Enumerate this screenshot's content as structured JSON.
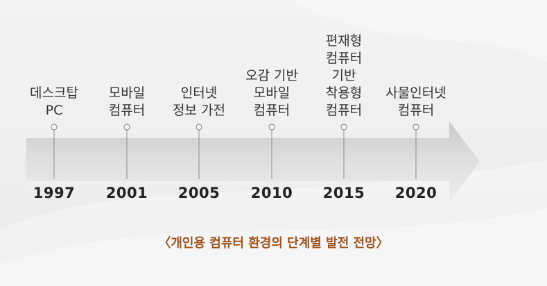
{
  "timeline": {
    "events": [
      {
        "year": "1997",
        "lines": [
          "데스크탑",
          "PC"
        ]
      },
      {
        "year": "2001",
        "lines": [
          "모바일",
          "컴퓨터"
        ]
      },
      {
        "year": "2005",
        "lines": [
          "인터넷",
          "정보 가전"
        ]
      },
      {
        "year": "2010",
        "lines": [
          "오감 기반",
          "모바일",
          "컴퓨터"
        ]
      },
      {
        "year": "2015",
        "lines": [
          "편재형",
          "컴퓨터",
          "기반",
          "착용형",
          "컴퓨터"
        ]
      },
      {
        "year": "2020",
        "lines": [
          "사물인터넷",
          "컴퓨터"
        ]
      }
    ]
  },
  "caption": {
    "open": "〈",
    "text": "개인용 컴퓨터 환경의 단계별 발전 전망",
    "close": "〉"
  },
  "colors": {
    "caption": "#a0521c",
    "arrow_light": "#c8c8c8",
    "arrow_dark": "#e6e6e6",
    "tick": "#8c8c8c"
  }
}
